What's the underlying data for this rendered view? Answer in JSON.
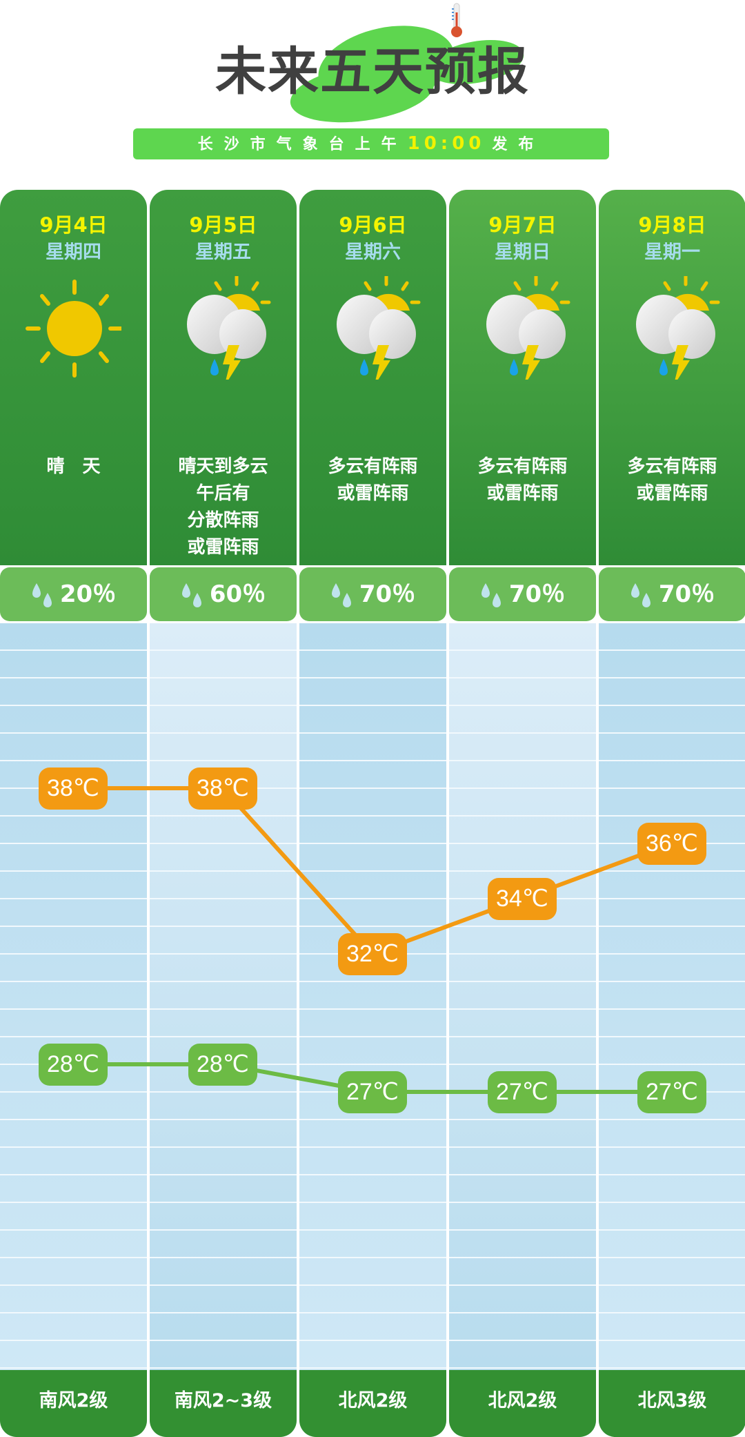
{
  "header": {
    "title": "未来五天预报",
    "subtitle_prefix": "长沙市气象台上午",
    "subtitle_time": "10:00",
    "subtitle_suffix": "发布"
  },
  "colors": {
    "high": "#f39a12",
    "low": "#6cbb45",
    "header_green": "#2f8c36",
    "date_yellow": "#f4f400"
  },
  "days": [
    {
      "date": "9月4日",
      "weekday": "星期四",
      "icon": "sun-icon",
      "desc": [
        "晴　天"
      ],
      "precip": "20％",
      "high": "38℃",
      "low": "28℃",
      "wind": "南风2级"
    },
    {
      "date": "9月5日",
      "weekday": "星期五",
      "icon": "thunderstorm-icon",
      "desc": [
        "晴天到多云",
        "午后有",
        "分散阵雨",
        "或雷阵雨"
      ],
      "precip": "60％",
      "high": "38℃",
      "low": "28℃",
      "wind": "南风2~3级"
    },
    {
      "date": "9月6日",
      "weekday": "星期六",
      "icon": "thunderstorm-icon",
      "desc": [
        "多云有阵雨",
        "或雷阵雨"
      ],
      "precip": "70％",
      "high": "32℃",
      "low": "27℃",
      "wind": "北风2级"
    },
    {
      "date": "9月7日",
      "weekday": "星期日",
      "icon": "thunderstorm-icon",
      "desc": [
        "多云有阵雨",
        "或雷阵雨"
      ],
      "precip": "70％",
      "high": "34℃",
      "low": "27℃",
      "wind": "北风2级"
    },
    {
      "date": "9月8日",
      "weekday": "星期一",
      "icon": "thunderstorm-icon",
      "desc": [
        "多云有阵雨",
        "或雷阵雨"
      ],
      "precip": "70％",
      "high": "36℃",
      "low": "27℃",
      "wind": "北风3级"
    }
  ],
  "chart_data": {
    "type": "line",
    "categories": [
      "9月4日",
      "9月5日",
      "9月6日",
      "9月7日",
      "9月8日"
    ],
    "series": [
      {
        "values": [
          38,
          38,
          32,
          34,
          36
        ],
        "color": "#f39a12"
      },
      {
        "values": [
          28,
          28,
          27,
          27,
          27
        ],
        "color": "#6cbb45"
      }
    ],
    "unit": "℃"
  }
}
